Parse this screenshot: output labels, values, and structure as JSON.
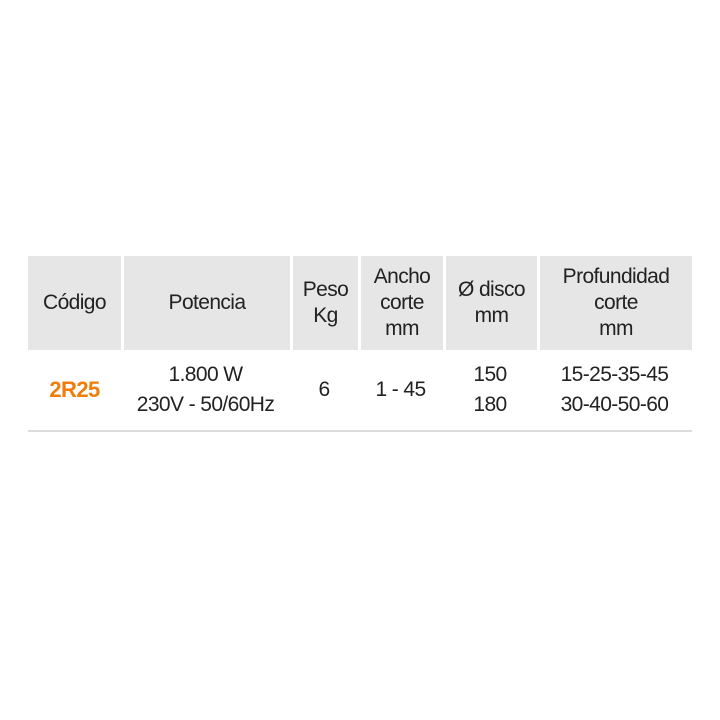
{
  "headers": [
    [
      "Código"
    ],
    [
      "Potencia"
    ],
    [
      "Peso",
      "Kg"
    ],
    [
      "Ancho",
      "corte",
      "mm"
    ],
    [
      "Ø disco",
      "mm"
    ],
    [
      "Profundidad",
      "corte",
      "mm"
    ]
  ],
  "rows": [
    {
      "code": "2R25",
      "potencia": [
        "1.800 W",
        "230V - 50/60Hz"
      ],
      "peso": "6",
      "ancho": "1 - 45",
      "disco": [
        "150",
        "180"
      ],
      "profundidad": [
        "15-25-35-45",
        "30-40-50-60"
      ]
    }
  ],
  "colors": {
    "accent": "#f07d0a",
    "header_bg": "#e6e6e6"
  }
}
